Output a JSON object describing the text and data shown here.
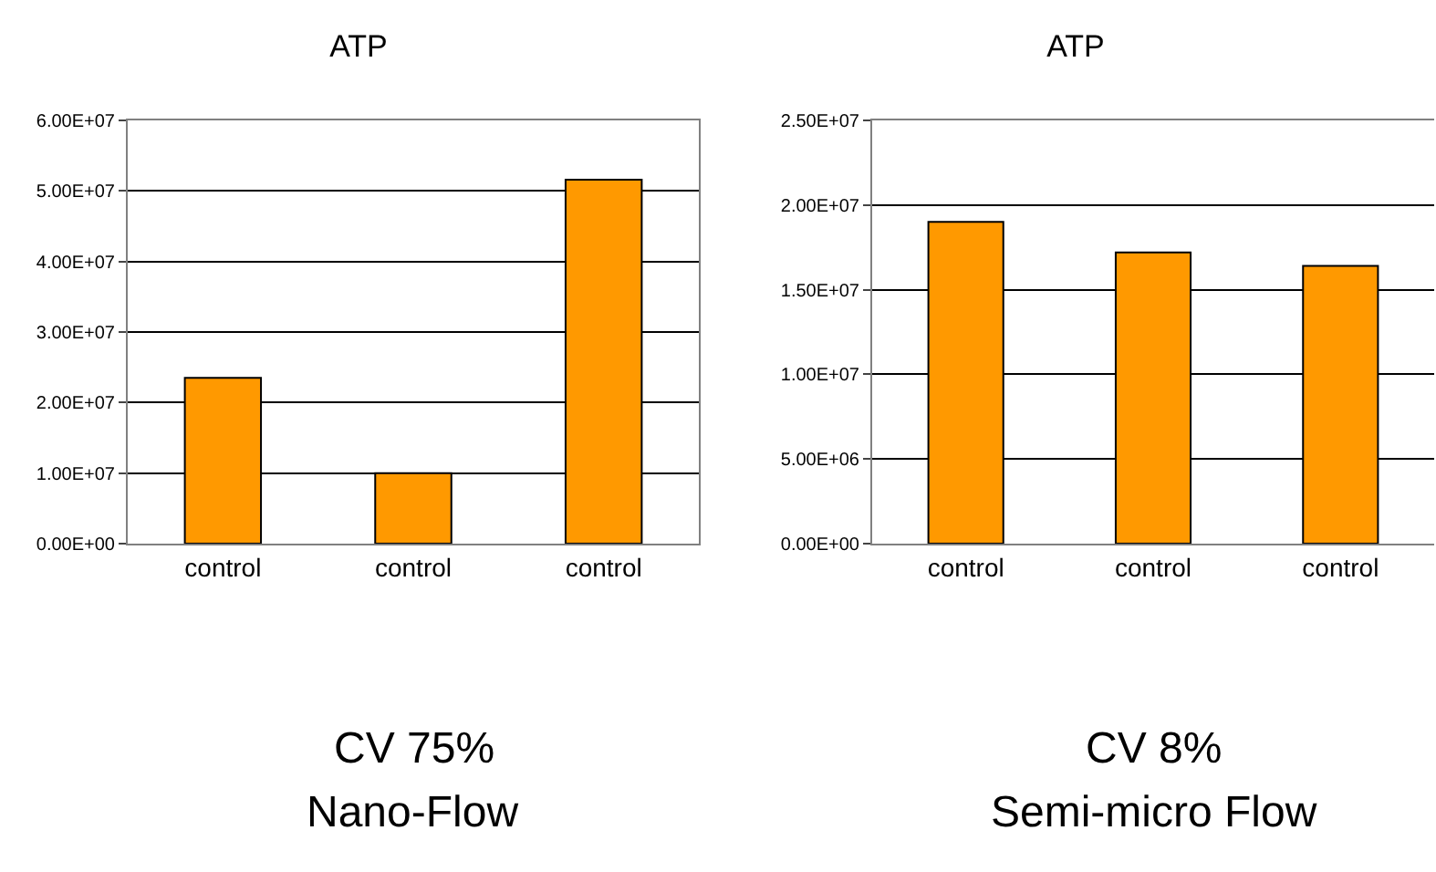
{
  "chart_data": [
    {
      "type": "bar",
      "title": "ATP",
      "categories": [
        "control",
        "control",
        "control"
      ],
      "values": [
        23500000,
        10000000,
        51600000
      ],
      "color": "#ff9900",
      "ylim": [
        0,
        60000000
      ],
      "yticks": [
        {
          "value": 0,
          "label": "0.00E+00"
        },
        {
          "value": 10000000,
          "label": "1.00E+07"
        },
        {
          "value": 20000000,
          "label": "2.00E+07"
        },
        {
          "value": 30000000,
          "label": "3.00E+07"
        },
        {
          "value": 40000000,
          "label": "4.00E+07"
        },
        {
          "value": 50000000,
          "label": "5.00E+07"
        },
        {
          "value": 60000000,
          "label": "6.00E+07"
        }
      ],
      "grid": "y",
      "annotations": [
        "CV 75%",
        "Nano-Flow"
      ]
    },
    {
      "type": "bar",
      "title": "ATP",
      "categories": [
        "control",
        "control",
        "control"
      ],
      "values": [
        19000000,
        17200000,
        16400000
      ],
      "color": "#ff9900",
      "ylim": [
        0,
        25000000
      ],
      "yticks": [
        {
          "value": 0,
          "label": "0.00E+00"
        },
        {
          "value": 5000000,
          "label": "5.00E+06"
        },
        {
          "value": 10000000,
          "label": "1.00E+07"
        },
        {
          "value": 15000000,
          "label": "1.50E+07"
        },
        {
          "value": 20000000,
          "label": "2.00E+07"
        },
        {
          "value": 25000000,
          "label": "2.50E+07"
        }
      ],
      "grid": "y",
      "annotations": [
        "CV 8%",
        "Semi-micro Flow"
      ]
    }
  ]
}
